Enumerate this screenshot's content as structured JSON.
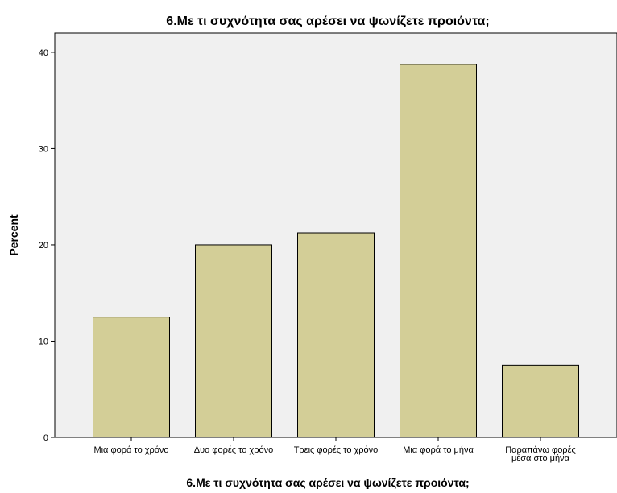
{
  "chart_data": {
    "type": "bar",
    "title": "6.Με τι συχνότητα σας αρέσει να ψωνίζετε προιόντα;",
    "xlabel": "6.Με τι συχνότητα σας αρέσει να ψωνίζετε προιόντα;",
    "ylabel": "Percent",
    "categories": [
      "Μια φορά το χρόνο",
      "Δυο φορές το χρόνο",
      "Τρεις φορές το χρόνο",
      "Μια φορά το μήνα",
      "Παραπάνω φορές μέσα στο μήνα"
    ],
    "category_lines": [
      [
        "Μια φορά το χρόνο"
      ],
      [
        "Δυο φορές το χρόνο"
      ],
      [
        "Τρεις φορές το χρόνο"
      ],
      [
        "Μια φορά το μήνα"
      ],
      [
        "Παραπάνω φορές",
        "μέσα στο μήνα"
      ]
    ],
    "values": [
      12.5,
      20.0,
      21.25,
      38.75,
      7.5
    ],
    "ylim": [
      0,
      42
    ],
    "yticks": [
      0,
      10,
      20,
      30,
      40
    ],
    "grid": false,
    "colors": {
      "bar_fill": "#d3ce97",
      "bar_stroke": "#000000",
      "plot_background": "#f0f0f0",
      "axis": "#000000"
    }
  }
}
